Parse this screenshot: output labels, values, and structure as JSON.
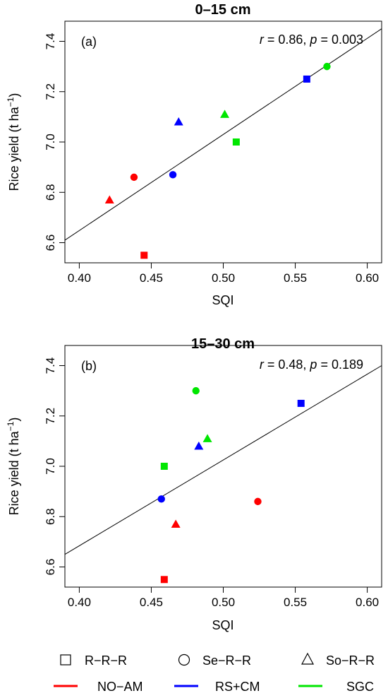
{
  "chart_data": [
    {
      "type": "scatter",
      "title": "0–15 cm",
      "panel_label": "(a)",
      "stat_r_label": "r",
      "stat_r_value": " = 0.86, ",
      "stat_p_label": "p",
      "stat_p_value": " = 0.003",
      "xlabel": "SQI",
      "ylabel": "Rice yield (t ha",
      "ylabel_sup": "−1",
      "ylabel_close": ")",
      "xlim": [
        0.39,
        0.61
      ],
      "ylim": [
        6.52,
        7.48
      ],
      "xticks": [
        "0.40",
        "0.45",
        "0.50",
        "0.55",
        "0.60"
      ],
      "yticks": [
        "6.6",
        "6.8",
        "7.0",
        "7.2",
        "7.4"
      ],
      "fit_line": {
        "x": [
          0.39,
          0.61
        ],
        "y": [
          6.61,
          7.45
        ]
      },
      "points": [
        {
          "treatment": "NO-AM",
          "system": "R-R-R",
          "x": 0.445,
          "y": 6.55
        },
        {
          "treatment": "NO-AM",
          "system": "Se-R-R",
          "x": 0.438,
          "y": 6.86
        },
        {
          "treatment": "NO-AM",
          "system": "So-R-R",
          "x": 0.421,
          "y": 6.77
        },
        {
          "treatment": "RS+CM",
          "system": "R-R-R",
          "x": 0.558,
          "y": 7.25
        },
        {
          "treatment": "RS+CM",
          "system": "Se-R-R",
          "x": 0.465,
          "y": 6.87
        },
        {
          "treatment": "RS+CM",
          "system": "So-R-R",
          "x": 0.469,
          "y": 7.08
        },
        {
          "treatment": "SGC",
          "system": "R-R-R",
          "x": 0.509,
          "y": 7.0
        },
        {
          "treatment": "SGC",
          "system": "Se-R-R",
          "x": 0.572,
          "y": 7.3
        },
        {
          "treatment": "SGC",
          "system": "So-R-R",
          "x": 0.501,
          "y": 7.11
        }
      ]
    },
    {
      "type": "scatter",
      "title": "15–30 cm",
      "panel_label": "(b)",
      "stat_r_label": "r",
      "stat_r_value": " = 0.48, ",
      "stat_p_label": "p",
      "stat_p_value": " = 0.189",
      "xlabel": "SQI",
      "ylabel": "Rice yield (t ha",
      "ylabel_sup": "−1",
      "ylabel_close": ")",
      "xlim": [
        0.39,
        0.61
      ],
      "ylim": [
        6.52,
        7.48
      ],
      "xticks": [
        "0.40",
        "0.45",
        "0.50",
        "0.55",
        "0.60"
      ],
      "yticks": [
        "6.6",
        "6.8",
        "7.0",
        "7.2",
        "7.4"
      ],
      "fit_line": {
        "x": [
          0.39,
          0.61
        ],
        "y": [
          6.65,
          7.4
        ]
      },
      "points": [
        {
          "treatment": "NO-AM",
          "system": "R-R-R",
          "x": 0.459,
          "y": 6.55
        },
        {
          "treatment": "NO-AM",
          "system": "Se-R-R",
          "x": 0.524,
          "y": 6.86
        },
        {
          "treatment": "NO-AM",
          "system": "So-R-R",
          "x": 0.467,
          "y": 6.77
        },
        {
          "treatment": "RS+CM",
          "system": "R-R-R",
          "x": 0.554,
          "y": 7.25
        },
        {
          "treatment": "RS+CM",
          "system": "Se-R-R",
          "x": 0.457,
          "y": 6.87
        },
        {
          "treatment": "RS+CM",
          "system": "So-R-R",
          "x": 0.483,
          "y": 7.08
        },
        {
          "treatment": "SGC",
          "system": "R-R-R",
          "x": 0.459,
          "y": 7.0
        },
        {
          "treatment": "SGC",
          "system": "Se-R-R",
          "x": 0.481,
          "y": 7.3
        },
        {
          "treatment": "SGC",
          "system": "So-R-R",
          "x": 0.489,
          "y": 7.11
        }
      ]
    }
  ],
  "legend": {
    "shapes": [
      {
        "label": "R−R−R",
        "shape": "square"
      },
      {
        "label": "Se−R−R",
        "shape": "circle"
      },
      {
        "label": "So−R−R",
        "shape": "triangle"
      }
    ],
    "colors": [
      {
        "label": "NO−AM",
        "color": "#ff0000"
      },
      {
        "label": "RS+CM",
        "color": "#0000ff"
      },
      {
        "label": "SGC",
        "color": "#00e600"
      }
    ]
  },
  "colors": {
    "NO-AM": "#ff0000",
    "RS+CM": "#0000ff",
    "SGC": "#00e600"
  },
  "shape_map": {
    "R-R-R": "square",
    "Se-R-R": "circle",
    "So-R-R": "triangle"
  }
}
